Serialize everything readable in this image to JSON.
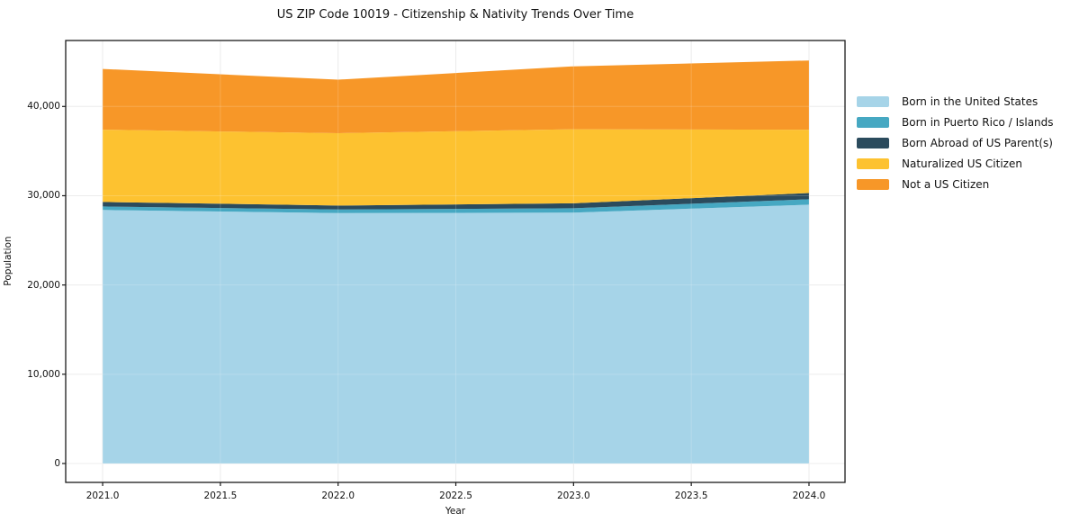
{
  "chart_data": {
    "type": "area",
    "stacked": true,
    "title": "US ZIP Code 10019 - Citizenship & Nativity Trends Over Time",
    "xlabel": "Year",
    "ylabel": "Population",
    "x": [
      2021,
      2022,
      2023,
      2024
    ],
    "series": [
      {
        "name": "Born in the United States",
        "color": "#a6d4e8",
        "values": [
          28400,
          28050,
          28100,
          29000
        ]
      },
      {
        "name": "Born in Puerto Rico / Islands",
        "color": "#46a8c2",
        "values": [
          400,
          400,
          500,
          600
        ]
      },
      {
        "name": "Born Abroad of US Parent(s)",
        "color": "#2b4b5d",
        "values": [
          500,
          450,
          550,
          700
        ]
      },
      {
        "name": "Naturalized US Citizen",
        "color": "#fdc230",
        "values": [
          8100,
          8100,
          8300,
          7100
        ]
      },
      {
        "name": "Not a US Citizen",
        "color": "#f79728",
        "values": [
          6800,
          6000,
          7050,
          7750
        ]
      }
    ],
    "totals": [
      44200,
      43000,
      44500,
      45150
    ],
    "x_ticks": {
      "values": [
        2021.0,
        2021.5,
        2022.0,
        2022.5,
        2023.0,
        2023.5,
        2024.0
      ],
      "labels": [
        "2021.0",
        "2021.5",
        "2022.0",
        "2022.5",
        "2023.0",
        "2023.5",
        "2024.0"
      ]
    },
    "y_ticks": {
      "values": [
        0,
        10000,
        20000,
        30000,
        40000
      ],
      "labels": [
        "0",
        "10,000",
        "20,000",
        "30,000",
        "40,000"
      ]
    },
    "xlim": [
      2020.843,
      2024.153
    ],
    "ylim": [
      -2117,
      47390
    ],
    "grid": true,
    "grid_color": "#e8e8e8",
    "grid_overlay_color": "rgba(255,255,255,0.18)",
    "spine_color": "#1a1a1a",
    "legend_position": "right"
  }
}
